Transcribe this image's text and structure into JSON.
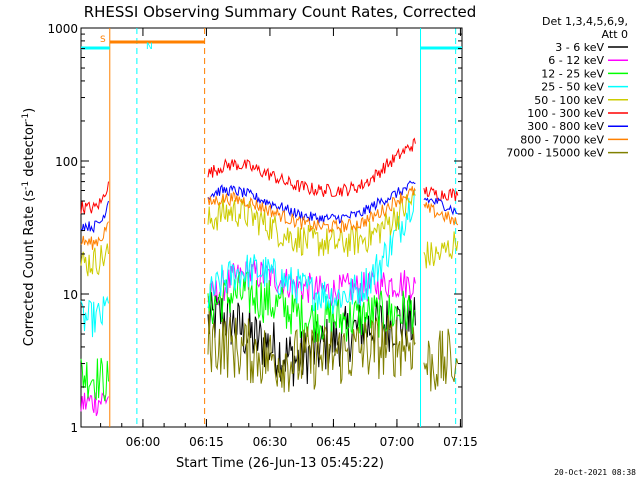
{
  "chart_data": {
    "type": "line",
    "title": "RHESSI Observing Summary Count Rates, Corrected",
    "xlabel": "Start Time (26-Jun-13 05:45:22)",
    "ylabel_main": "Corrected Count Rate (s",
    "ylabel_sup1": "-1",
    "ylabel_mid": " detector",
    "ylabel_sup2": "-1",
    "ylabel_end": ")",
    "yscale": "log",
    "ylim": [
      1,
      1000
    ],
    "xlim_min": [
      0,
      90
    ],
    "x_ticks": [
      {
        "t": 14.63,
        "label": "06:00"
      },
      {
        "t": 29.63,
        "label": "06:15"
      },
      {
        "t": 44.63,
        "label": "06:30"
      },
      {
        "t": 59.63,
        "label": "06:45"
      },
      {
        "t": 74.63,
        "label": "07:00"
      },
      {
        "t": 89.63,
        "label": "07:15"
      }
    ],
    "y_ticks": [
      {
        "v": 1,
        "label": "1"
      },
      {
        "v": 10,
        "label": "10"
      },
      {
        "v": 100,
        "label": "100"
      },
      {
        "v": 1000,
        "label": "1000"
      }
    ],
    "legend_header": [
      "Det 1,3,4,5,6,9,",
      "Att 0"
    ],
    "legend_placement": "right",
    "footer_date": "20-Oct-2021 08:38",
    "annotations": [
      {
        "text": "S",
        "color": "#ff8000"
      },
      {
        "text": "N",
        "color": "#00ffff"
      }
    ],
    "series": [
      {
        "name": "3 - 6 keV",
        "color": "#000000",
        "segments": [
          [
            [
              30,
              6
            ],
            [
              33,
              7
            ],
            [
              36,
              6
            ],
            [
              39,
              5
            ],
            [
              42,
              4.5
            ],
            [
              45,
              4
            ],
            [
              48,
              3.5
            ],
            [
              51,
              3.2
            ],
            [
              54,
              3.5
            ],
            [
              57,
              4
            ],
            [
              60,
              4.5
            ],
            [
              63,
              5
            ],
            [
              66,
              5.5
            ],
            [
              69,
              5.8
            ],
            [
              72,
              6
            ],
            [
              75,
              6.2
            ],
            [
              78,
              6
            ],
            [
              79,
              5.8
            ]
          ]
        ]
      },
      {
        "name": "6 - 12 keV",
        "color": "#ff00ff",
        "segments": [
          [
            [
              0,
              1.5
            ],
            [
              5,
              1.6
            ],
            [
              6.5,
              1.7
            ]
          ],
          [
            [
              30,
              9
            ],
            [
              33,
              11
            ],
            [
              36,
              13
            ],
            [
              39,
              14
            ],
            [
              42,
              14
            ],
            [
              45,
              13.5
            ],
            [
              48,
              12.5
            ],
            [
              51,
              11.5
            ],
            [
              54,
              11
            ],
            [
              57,
              10.5
            ],
            [
              60,
              10.5
            ],
            [
              63,
              11
            ],
            [
              66,
              11
            ],
            [
              69,
              11.5
            ],
            [
              72,
              12
            ],
            [
              75,
              12
            ],
            [
              79,
              12
            ]
          ]
        ]
      },
      {
        "name": "12 - 25 keV",
        "color": "#00ff00",
        "segments": [
          [
            [
              0,
              2.5
            ],
            [
              3,
              2.4
            ],
            [
              6.5,
              2.2
            ]
          ],
          [
            [
              30,
              8
            ],
            [
              33,
              9
            ],
            [
              36,
              10
            ],
            [
              39,
              10
            ],
            [
              42,
              9.5
            ],
            [
              45,
              8.5
            ],
            [
              48,
              7.8
            ],
            [
              51,
              7
            ],
            [
              54,
              6.5
            ],
            [
              57,
              6.5
            ],
            [
              60,
              6.5
            ],
            [
              63,
              6.5
            ],
            [
              66,
              6.8
            ],
            [
              69,
              7
            ],
            [
              72,
              7
            ],
            [
              75,
              7.3
            ],
            [
              78,
              7.5
            ],
            [
              79,
              7.5
            ]
          ]
        ]
      },
      {
        "name": "25 - 50 keV",
        "color": "#00ffff",
        "segments": [
          [
            [
              0,
              6.5
            ],
            [
              3,
              6.5
            ],
            [
              5,
              6.8
            ],
            [
              6.5,
              8.5
            ]
          ],
          [
            [
              30,
              9.5
            ],
            [
              33,
              12
            ],
            [
              36,
              14
            ],
            [
              39,
              15
            ],
            [
              42,
              15
            ],
            [
              45,
              14
            ],
            [
              48,
              12.5
            ],
            [
              51,
              11.5
            ],
            [
              54,
              10.5
            ],
            [
              57,
              10
            ],
            [
              60,
              9.5
            ],
            [
              63,
              10
            ],
            [
              66,
              11
            ],
            [
              69,
              14
            ],
            [
              72,
              20
            ],
            [
              75,
              30
            ],
            [
              78,
              50
            ],
            [
              79,
              60
            ]
          ]
        ]
      },
      {
        "name": "50 - 100 keV",
        "color": "#cccc00",
        "segments": [
          [
            [
              0,
              17
            ],
            [
              3,
              17.5
            ],
            [
              6.5,
              20
            ]
          ],
          [
            [
              30,
              35
            ],
            [
              33,
              40
            ],
            [
              36,
              42
            ],
            [
              39,
              40
            ],
            [
              42,
              36
            ],
            [
              45,
              32
            ],
            [
              48,
              28
            ],
            [
              51,
              26
            ],
            [
              54,
              25
            ],
            [
              57,
              24.5
            ],
            [
              60,
              24
            ],
            [
              63,
              24.5
            ],
            [
              66,
              25.5
            ],
            [
              69,
              28
            ],
            [
              72,
              33
            ],
            [
              75,
              40
            ],
            [
              78,
              50
            ],
            [
              79,
              55
            ]
          ],
          [
            [
              81,
              20
            ],
            [
              83,
              19
            ],
            [
              85,
              20
            ],
            [
              87,
              22
            ],
            [
              89,
              25
            ]
          ]
        ]
      },
      {
        "name": "100 - 300 keV",
        "color": "#ff0000",
        "segments": [
          [
            [
              0,
              45
            ],
            [
              3,
              44
            ],
            [
              5,
              50
            ],
            [
              6.5,
              70
            ]
          ],
          [
            [
              30,
              80
            ],
            [
              33,
              90
            ],
            [
              36,
              95
            ],
            [
              39,
              92
            ],
            [
              42,
              85
            ],
            [
              45,
              78
            ],
            [
              48,
              70
            ],
            [
              51,
              65
            ],
            [
              54,
              62
            ],
            [
              57,
              60
            ],
            [
              60,
              60
            ],
            [
              63,
              61
            ],
            [
              66,
              65
            ],
            [
              69,
              75
            ],
            [
              72,
              92
            ],
            [
              75,
              110
            ],
            [
              78,
              130
            ],
            [
              79,
              135
            ]
          ],
          [
            [
              81,
              60
            ],
            [
              83,
              57
            ],
            [
              85,
              56
            ],
            [
              87,
              57
            ],
            [
              89,
              55
            ]
          ]
        ]
      },
      {
        "name": "300 - 800 keV",
        "color": "#0000ff",
        "segments": [
          [
            [
              0,
              33
            ],
            [
              3,
              32
            ],
            [
              5,
              36
            ],
            [
              6.5,
              50
            ]
          ],
          [
            [
              30,
              55
            ],
            [
              33,
              60
            ],
            [
              36,
              60
            ],
            [
              39,
              57
            ],
            [
              42,
              52
            ],
            [
              45,
              48
            ],
            [
              48,
              44
            ],
            [
              51,
              40
            ],
            [
              54,
              38
            ],
            [
              57,
              37
            ],
            [
              60,
              37
            ],
            [
              63,
              38
            ],
            [
              66,
              40
            ],
            [
              69,
              46
            ],
            [
              72,
              52
            ],
            [
              75,
              58
            ],
            [
              78,
              65
            ],
            [
              79,
              68
            ]
          ],
          [
            [
              81,
              52
            ],
            [
              83,
              50
            ],
            [
              85,
              48
            ],
            [
              87,
              45
            ],
            [
              89,
              40
            ]
          ]
        ]
      },
      {
        "name": "800 - 7000 keV",
        "color": "#ff8000",
        "segments": [
          [
            [
              0,
              25
            ],
            [
              3,
              24
            ],
            [
              5,
              27
            ],
            [
              6.5,
              35
            ]
          ],
          [
            [
              30,
              48
            ],
            [
              33,
              52
            ],
            [
              36,
              52
            ],
            [
              39,
              50
            ],
            [
              42,
              46
            ],
            [
              45,
              42
            ],
            [
              48,
              38
            ],
            [
              51,
              35
            ],
            [
              54,
              33
            ],
            [
              57,
              32
            ],
            [
              60,
              32
            ],
            [
              63,
              32.5
            ],
            [
              66,
              34
            ],
            [
              69,
              38
            ],
            [
              72,
              44
            ],
            [
              75,
              52
            ],
            [
              78,
              58
            ],
            [
              79,
              60
            ]
          ],
          [
            [
              81,
              45
            ],
            [
              83,
              42
            ],
            [
              85,
              40
            ],
            [
              87,
              37
            ],
            [
              89,
              33
            ]
          ]
        ]
      },
      {
        "name": "7000 - 15000 keV",
        "color": "#808000",
        "segments": [
          [
            [
              30,
              4.5
            ],
            [
              33,
              4.2
            ],
            [
              36,
              4
            ],
            [
              39,
              3.8
            ],
            [
              42,
              3.5
            ],
            [
              45,
              3.3
            ],
            [
              48,
              3.2
            ],
            [
              51,
              3.2
            ],
            [
              54,
              3.3
            ],
            [
              57,
              3.4
            ],
            [
              60,
              3.5
            ],
            [
              63,
              3.6
            ],
            [
              66,
              3.8
            ],
            [
              69,
              4
            ],
            [
              72,
              4
            ],
            [
              75,
              4.2
            ],
            [
              78,
              4.3
            ],
            [
              79,
              4.3
            ]
          ],
          [
            [
              81,
              3
            ],
            [
              84,
              3
            ],
            [
              87,
              3.1
            ],
            [
              89,
              3
            ]
          ]
        ]
      }
    ]
  }
}
